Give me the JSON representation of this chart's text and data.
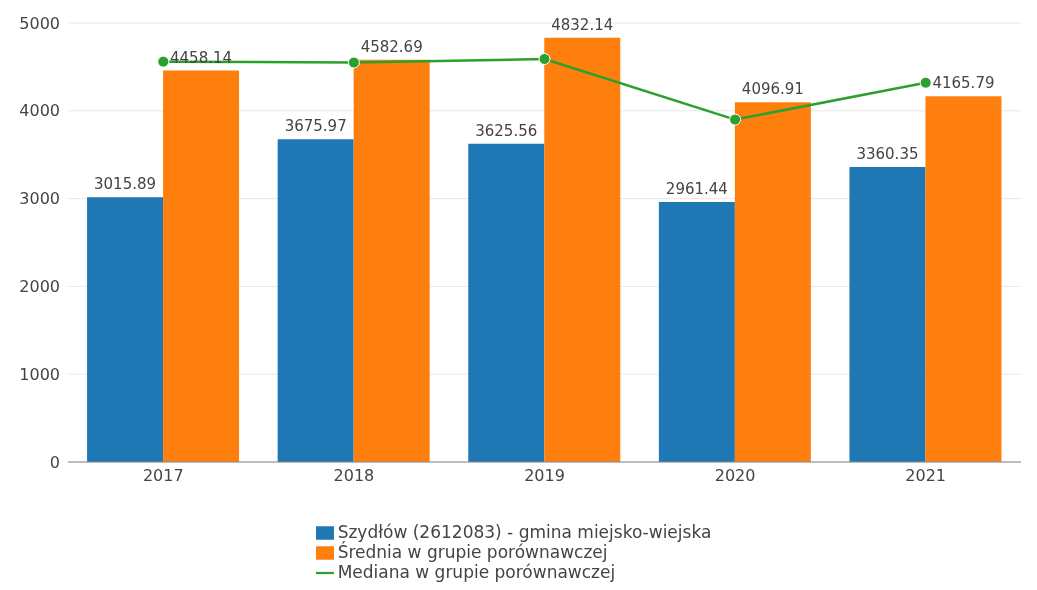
{
  "chart_data": {
    "type": "bar",
    "categories": [
      "2017",
      "2018",
      "2019",
      "2020",
      "2021"
    ],
    "series": [
      {
        "name": "Szydłów (2612083) - gmina miejsko-wiejska",
        "color": "#1f77b4",
        "values": [
          3015.89,
          3675.97,
          3625.56,
          2961.44,
          3360.35
        ],
        "value_labels": [
          "3015.89",
          "3675.97",
          "3625.56",
          "2961.44",
          "3360.35"
        ]
      },
      {
        "name": "Średnia w grupie porównawczej",
        "color": "#ff7f0e",
        "values": [
          4458.14,
          4582.69,
          4832.14,
          4096.91,
          4165.79
        ],
        "value_labels": [
          "4458.14",
          "4582.69",
          "4832.14",
          "4096.91",
          "4165.79"
        ]
      },
      {
        "name": "Mediana w grupie porównawczej",
        "type": "line",
        "color": "#2ca02c",
        "values": [
          4560,
          4550,
          4590,
          3900,
          4320
        ]
      }
    ],
    "ylim": [
      0,
      5000
    ],
    "yticks": [
      0,
      1000,
      2000,
      3000,
      4000,
      5000
    ],
    "grid": "y",
    "legend": "bottom",
    "marker": "circle",
    "line_style": "solid"
  }
}
